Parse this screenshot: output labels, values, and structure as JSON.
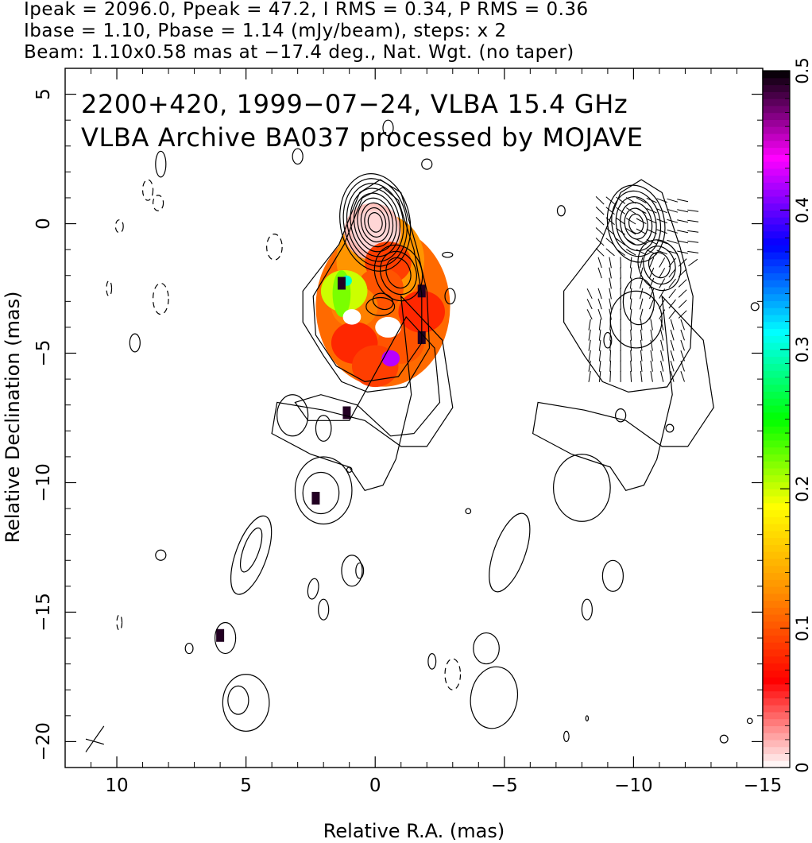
{
  "header": {
    "line1": "Ipeak = 2096.0, Ppeak = 47.2, I RMS = 0.34, P RMS = 0.36",
    "line2": "Ibase = 1.10, Pbase = 1.14 (mJy/beam), steps: x 2",
    "line3": "Beam: 1.10x0.58 mas at −17.4 deg., Nat. Wgt. (no taper)"
  },
  "overlay": {
    "line1": "2200+420, 1999−07−24, VLBA 15.4 GHz",
    "line2": "VLBA Archive BA037 processed by MOJAVE"
  },
  "chart_data": {
    "type": "heatmap",
    "xlabel": "Relative R.A. (mas)",
    "ylabel": "Relative Declination (mas)",
    "xlim": [
      12,
      -15
    ],
    "ylim": [
      -21,
      6
    ],
    "xticks": [
      10,
      5,
      0,
      -5,
      -10,
      -15
    ],
    "xtick_labels": [
      "10",
      "5",
      "0",
      "−5",
      "−10",
      "−15"
    ],
    "yticks": [
      5,
      0,
      -5,
      -10,
      -15,
      -20
    ],
    "ytick_labels": [
      "5",
      "0",
      "−5",
      "−10",
      "−15",
      "−20"
    ],
    "colorbar": {
      "range": [
        0,
        0.5
      ],
      "ticks": [
        0,
        0.1,
        0.2,
        0.3,
        0.4,
        0.5
      ],
      "tick_labels": [
        "0",
        "0.1",
        "0.2",
        "0.3",
        "0.4",
        "0.5"
      ],
      "colors": [
        "#ffffff",
        "#ff0000",
        "#ff8c00",
        "#ffff00",
        "#00ff00",
        "#00ffff",
        "#0000ff",
        "#ff00ff",
        "#000000"
      ]
    },
    "beam": {
      "major_mas": 1.1,
      "minor_mas": 0.58,
      "pa_deg": -17.4
    },
    "contour_base_mJy_per_beam": 1.1,
    "contour_step": 2,
    "polarization_color_patch": [
      {
        "ra": 0.0,
        "dec": -0.3,
        "v": 0.01
      },
      {
        "ra": -0.5,
        "dec": -1.5,
        "v": 0.09
      },
      {
        "ra": -0.2,
        "dec": -2.5,
        "v": 0.1
      },
      {
        "ra": 0.8,
        "dec": -3.2,
        "v": 0.12
      },
      {
        "ra": 0.8,
        "dec": -4.6,
        "v": 0.08
      },
      {
        "ra": -1.0,
        "dec": -4.6,
        "v": 0.1
      },
      {
        "ra": 1.2,
        "dec": -2.6,
        "v": 0.2
      },
      {
        "ra": -1.8,
        "dec": -3.4,
        "v": 0.08
      },
      {
        "ra": 0.0,
        "dec": -5.5,
        "v": 0.09
      },
      {
        "ra": -0.6,
        "dec": -5.2,
        "v": 0.42
      }
    ]
  }
}
